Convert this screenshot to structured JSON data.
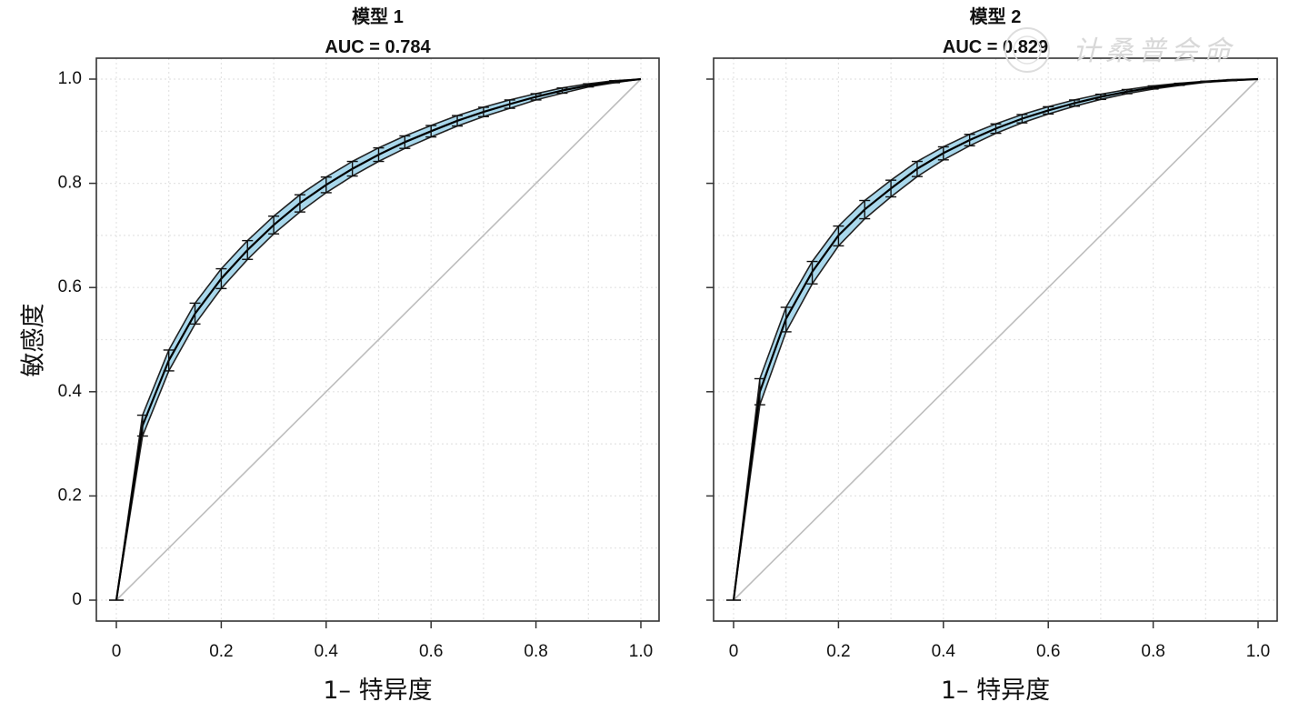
{
  "ylabel": "敏感度",
  "watermark_text": "计桑普会命",
  "chart_data": [
    {
      "type": "line",
      "title": "模型 1",
      "subtitle": "AUC = 0.784",
      "xlabel": "1– 特异度",
      "xlim": [
        0,
        1
      ],
      "ylim": [
        0,
        1
      ],
      "x_ticks": [
        "0",
        "0.2",
        "0.4",
        "0.6",
        "0.8",
        "1.0"
      ],
      "y_ticks": [
        "0",
        "0.2",
        "0.4",
        "0.6",
        "0.8",
        "1.0"
      ],
      "grid": true,
      "reference_line": {
        "x": [
          0,
          1
        ],
        "y": [
          0,
          1
        ]
      },
      "roc": {
        "x": [
          0,
          0.05,
          0.1,
          0.15,
          0.2,
          0.25,
          0.3,
          0.35,
          0.4,
          0.45,
          0.5,
          0.55,
          0.6,
          0.65,
          0.7,
          0.75,
          0.8,
          0.85,
          0.9,
          0.95,
          1.0
        ],
        "y": [
          0,
          0.335,
          0.46,
          0.55,
          0.617,
          0.672,
          0.72,
          0.762,
          0.797,
          0.828,
          0.855,
          0.879,
          0.9,
          0.92,
          0.937,
          0.952,
          0.966,
          0.978,
          0.988,
          0.995,
          1.0
        ],
        "lower": [
          0,
          0.315,
          0.44,
          0.53,
          0.598,
          0.654,
          0.703,
          0.745,
          0.782,
          0.814,
          0.842,
          0.867,
          0.889,
          0.91,
          0.928,
          0.944,
          0.96,
          0.973,
          0.985,
          0.993,
          1.0
        ],
        "upper": [
          0,
          0.355,
          0.48,
          0.57,
          0.636,
          0.69,
          0.737,
          0.778,
          0.812,
          0.842,
          0.868,
          0.891,
          0.911,
          0.93,
          0.946,
          0.96,
          0.972,
          0.983,
          0.991,
          0.997,
          1.0
        ]
      }
    },
    {
      "type": "line",
      "title": "模型 2",
      "subtitle": "AUC = 0.829",
      "xlabel": "1– 特异度",
      "xlim": [
        0,
        1
      ],
      "ylim": [
        0,
        1
      ],
      "x_ticks": [
        "0",
        "0.2",
        "0.4",
        "0.6",
        "0.8",
        "1.0"
      ],
      "y_ticks": [
        "0",
        "0.2",
        "0.4",
        "0.6",
        "0.8",
        "1.0"
      ],
      "grid": true,
      "reference_line": {
        "x": [
          0,
          1
        ],
        "y": [
          0,
          1
        ]
      },
      "roc": {
        "x": [
          0,
          0.05,
          0.1,
          0.15,
          0.2,
          0.25,
          0.3,
          0.35,
          0.4,
          0.45,
          0.5,
          0.55,
          0.6,
          0.65,
          0.7,
          0.75,
          0.8,
          0.85,
          0.9,
          0.95,
          1.0
        ],
        "y": [
          0,
          0.4,
          0.54,
          0.63,
          0.7,
          0.75,
          0.79,
          0.828,
          0.858,
          0.883,
          0.905,
          0.924,
          0.94,
          0.954,
          0.966,
          0.976,
          0.984,
          0.99,
          0.995,
          0.998,
          1.0
        ],
        "lower": [
          0,
          0.375,
          0.515,
          0.607,
          0.68,
          0.732,
          0.774,
          0.813,
          0.845,
          0.872,
          0.896,
          0.916,
          0.933,
          0.948,
          0.961,
          0.972,
          0.981,
          0.988,
          0.994,
          0.997,
          1.0
        ],
        "upper": [
          0,
          0.425,
          0.562,
          0.65,
          0.718,
          0.767,
          0.806,
          0.842,
          0.87,
          0.894,
          0.914,
          0.932,
          0.947,
          0.96,
          0.971,
          0.98,
          0.987,
          0.992,
          0.996,
          0.999,
          1.0
        ]
      }
    }
  ]
}
